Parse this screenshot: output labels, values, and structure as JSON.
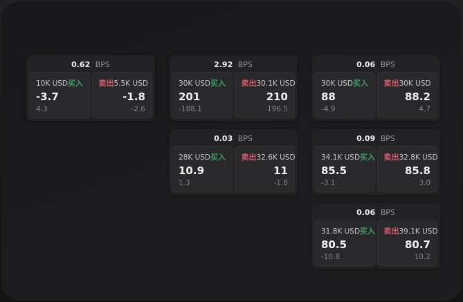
{
  "labels": {
    "bps": "BPS",
    "buy": "买入",
    "sell": "卖出"
  },
  "colors": {
    "buy": "#3f9f63",
    "sell": "#d45a6b",
    "panel_bg": "#1c1c1e",
    "card_bg": "#222225",
    "subpanel_bg": "#29292c",
    "value_text": "#f2f2f4",
    "muted_text": "#86868a"
  },
  "cards": [
    {
      "col": 1,
      "row": 1,
      "bps": "0.62",
      "buy": {
        "size": "10K USD",
        "value": "-3.7",
        "delta": "4.3"
      },
      "sell": {
        "size": "5.5K USD",
        "value": "-1.8",
        "delta": "-2.6"
      }
    },
    {
      "col": 2,
      "row": 1,
      "bps": "2.92",
      "buy": {
        "size": "30K USD",
        "value": "201",
        "delta": "-188.1"
      },
      "sell": {
        "size": "30.1K USD",
        "value": "210",
        "delta": "196.5"
      }
    },
    {
      "col": 3,
      "row": 1,
      "bps": "0.06",
      "buy": {
        "size": "30K USD",
        "value": "88",
        "delta": "-4.9"
      },
      "sell": {
        "size": "30K USD",
        "value": "88.2",
        "delta": "4.7"
      }
    },
    {
      "col": 2,
      "row": 2,
      "bps": "0.03",
      "buy": {
        "size": "28K USD",
        "value": "10.9",
        "delta": "1.3"
      },
      "sell": {
        "size": "32.6K USD",
        "value": "11",
        "delta": "-1.8"
      }
    },
    {
      "col": 3,
      "row": 2,
      "bps": "0.09",
      "buy": {
        "size": "34.1K USD",
        "value": "85.5",
        "delta": "-3.1"
      },
      "sell": {
        "size": "32.8K USD",
        "value": "85.8",
        "delta": "3.0"
      }
    },
    {
      "col": 3,
      "row": 3,
      "bps": "0.06",
      "buy": {
        "size": "31.8K USD",
        "value": "80.5",
        "delta": "-10.8"
      },
      "sell": {
        "size": "39.1K USD",
        "value": "80.7",
        "delta": "10.2"
      }
    }
  ]
}
